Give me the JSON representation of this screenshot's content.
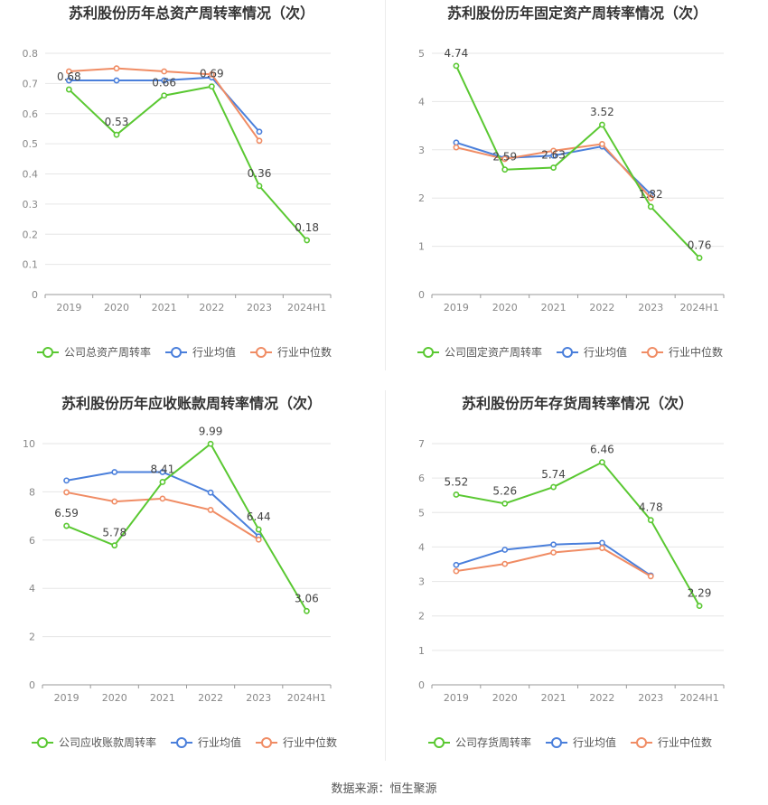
{
  "chart_data": [
    {
      "type": "line",
      "title": "苏利股份历年总资产周转率情况（次）",
      "categories": [
        "2019",
        "2020",
        "2021",
        "2022",
        "2023",
        "2024H1"
      ],
      "yticks": [
        "0",
        "0.1",
        "0.2",
        "0.3",
        "0.4",
        "0.5",
        "0.6",
        "0.7",
        "0.8"
      ],
      "ylim": [
        0,
        0.8
      ],
      "series": [
        {
          "name": "公司总资产周转率",
          "color": "#5ac832",
          "values": [
            0.68,
            0.53,
            0.66,
            0.69,
            0.36,
            0.18
          ],
          "labels": [
            "0.68",
            "0.53",
            "0.66",
            "0.69",
            "0.36",
            "0.18"
          ]
        },
        {
          "name": "行业均值",
          "color": "#4a7fdb",
          "values": [
            0.71,
            0.71,
            0.71,
            0.72,
            0.54,
            null
          ]
        },
        {
          "name": "行业中位数",
          "color": "#f08c64",
          "values": [
            0.74,
            0.75,
            0.74,
            0.73,
            0.51,
            null
          ]
        }
      ]
    },
    {
      "type": "line",
      "title": "苏利股份历年固定资产周转率情况（次）",
      "categories": [
        "2019",
        "2020",
        "2021",
        "2022",
        "2023",
        "2024H1"
      ],
      "yticks": [
        "0",
        "1",
        "2",
        "3",
        "4",
        "5"
      ],
      "ylim": [
        0,
        5
      ],
      "series": [
        {
          "name": "公司固定资产周转率",
          "color": "#5ac832",
          "values": [
            4.74,
            2.59,
            2.63,
            3.52,
            1.82,
            0.76
          ],
          "labels": [
            "4.74",
            "2.59",
            "2.63",
            "3.52",
            "1.82",
            "0.76"
          ]
        },
        {
          "name": "行业均值",
          "color": "#4a7fdb",
          "values": [
            3.15,
            2.83,
            2.88,
            3.07,
            2.08,
            null
          ]
        },
        {
          "name": "行业中位数",
          "color": "#f08c64",
          "values": [
            3.05,
            2.81,
            2.98,
            3.12,
            2.0,
            null
          ]
        }
      ]
    },
    {
      "type": "line",
      "title": "苏利股份历年应收账款周转率情况（次）",
      "categories": [
        "2019",
        "2020",
        "2021",
        "2022",
        "2023",
        "2024H1"
      ],
      "yticks": [
        "0",
        "2",
        "4",
        "6",
        "8",
        "10"
      ],
      "ylim": [
        0,
        10
      ],
      "series": [
        {
          "name": "公司应收账款周转率",
          "color": "#5ac832",
          "values": [
            6.59,
            5.78,
            8.41,
            9.99,
            6.44,
            3.06
          ],
          "labels": [
            "6.59",
            "5.78",
            "8.41",
            "9.99",
            "6.44",
            "3.06"
          ]
        },
        {
          "name": "行业均值",
          "color": "#4a7fdb",
          "values": [
            8.47,
            8.82,
            8.82,
            7.97,
            6.15,
            null
          ]
        },
        {
          "name": "行业中位数",
          "color": "#f08c64",
          "values": [
            7.98,
            7.6,
            7.72,
            7.25,
            6.02,
            null
          ]
        }
      ]
    },
    {
      "type": "line",
      "title": "苏利股份历年存货周转率情况（次）",
      "categories": [
        "2019",
        "2020",
        "2021",
        "2022",
        "2023",
        "2024H1"
      ],
      "yticks": [
        "0",
        "1",
        "2",
        "3",
        "4",
        "5",
        "6",
        "7"
      ],
      "ylim": [
        0,
        7
      ],
      "series": [
        {
          "name": "公司存货周转率",
          "color": "#5ac832",
          "values": [
            5.52,
            5.26,
            5.74,
            6.46,
            4.78,
            2.29
          ],
          "labels": [
            "5.52",
            "5.26",
            "5.74",
            "6.46",
            "4.78",
            "2.29"
          ]
        },
        {
          "name": "行业均值",
          "color": "#4a7fdb",
          "values": [
            3.48,
            3.92,
            4.07,
            4.12,
            3.17,
            null
          ]
        },
        {
          "name": "行业中位数",
          "color": "#f08c64",
          "values": [
            3.3,
            3.51,
            3.84,
            3.97,
            3.15,
            null
          ]
        }
      ]
    }
  ],
  "source": "数据来源：恒生聚源"
}
